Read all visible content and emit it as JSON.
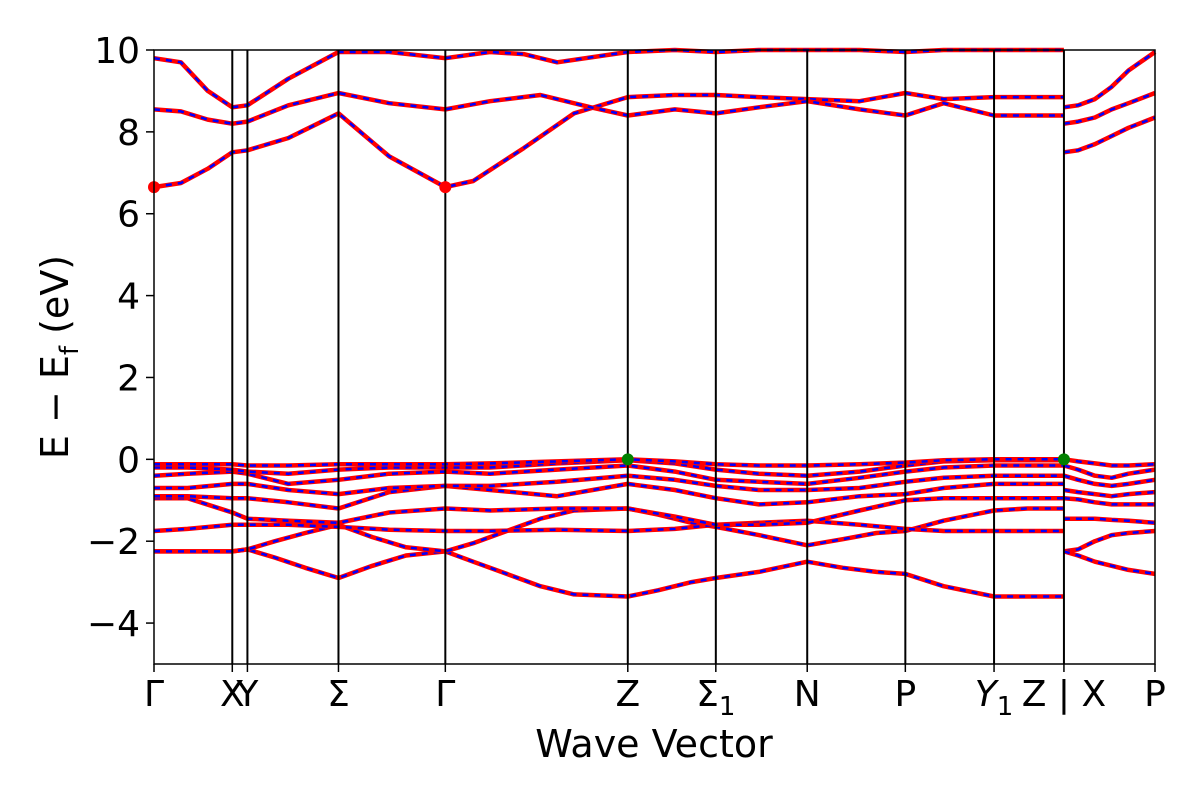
{
  "chart_data": {
    "type": "line",
    "title": "",
    "xlabel": "Wave Vector",
    "ylabel": "E − E",
    "ylabel_subscript": "f",
    "ylabel_unit": " (eV)",
    "ylim": [
      -5,
      10
    ],
    "yticks": [
      10,
      8,
      6,
      4,
      2,
      0,
      -2,
      -4
    ],
    "ytick_labels": [
      "10",
      "8",
      "6",
      "4",
      "2",
      "0",
      "−2",
      "−4"
    ],
    "grid": false,
    "legend": "none",
    "kpoints": [
      {
        "label": "Γ",
        "x": 0.0
      },
      {
        "label": "X",
        "x": 0.233
      },
      {
        "label": "Y",
        "x": 0.278
      },
      {
        "label": "Σ",
        "x": 0.549
      },
      {
        "label": "Γ",
        "x": 0.867
      },
      {
        "label": "Z",
        "x": 1.41
      },
      {
        "label": "Σ",
        "sub": "1",
        "x": 1.672
      },
      {
        "label": "N",
        "x": 1.944
      },
      {
        "label": "P",
        "x": 2.236
      },
      {
        "label": "Y",
        "sub": "1",
        "italic": true,
        "x": 2.5
      },
      {
        "label": "Z | X",
        "x": 2.708
      },
      {
        "label": "P",
        "x": 2.979
      }
    ],
    "xlim": [
      0.0,
      2.979
    ],
    "band_colors": {
      "spin_up": "#ff0000",
      "spin_down": "#0000ff"
    },
    "extrema_colors": {
      "cbm": "#ff0000",
      "vbm": "#008000"
    },
    "cbm_points": [
      {
        "x": 0.0,
        "y": 6.65
      },
      {
        "x": 0.867,
        "y": 6.65
      }
    ],
    "vbm_points": [
      {
        "x": 1.41,
        "y": 0.0
      },
      {
        "x": 2.708,
        "y": 0.0
      }
    ],
    "series": [
      {
        "x": [
          0.0,
          0.08,
          0.16,
          0.233,
          0.278,
          0.36,
          0.45,
          0.549,
          0.65,
          0.75,
          0.867,
          0.95,
          1.05,
          1.15,
          1.25,
          1.41,
          1.5,
          1.6,
          1.672,
          1.8,
          1.944,
          2.05,
          2.15,
          2.236,
          2.35,
          2.5,
          2.6,
          2.708
        ],
        "values": [
          -2.25,
          -2.25,
          -2.25,
          -2.25,
          -2.2,
          -2.4,
          -2.65,
          -2.9,
          -2.6,
          -2.35,
          -2.25,
          -2.5,
          -2.8,
          -3.1,
          -3.3,
          -3.35,
          -3.2,
          -3.0,
          -2.9,
          -2.75,
          -2.5,
          -2.65,
          -2.75,
          -2.8,
          -3.1,
          -3.35,
          -3.35,
          -3.35
        ]
      },
      {
        "x": [
          0.0,
          0.08,
          0.16,
          0.233,
          0.278,
          0.36,
          0.45,
          0.549,
          0.65,
          0.75,
          0.867,
          0.95,
          1.05,
          1.15,
          1.25,
          1.41,
          1.5,
          1.6,
          1.672,
          1.8,
          1.944,
          2.05,
          2.15,
          2.236,
          2.35,
          2.5,
          2.6,
          2.708
        ],
        "values": [
          -2.25,
          -2.25,
          -2.25,
          -2.25,
          -2.2,
          -2.0,
          -1.8,
          -1.6,
          -1.9,
          -2.15,
          -2.25,
          -2.05,
          -1.75,
          -1.45,
          -1.25,
          -1.2,
          -1.35,
          -1.55,
          -1.65,
          -1.85,
          -2.1,
          -1.95,
          -1.8,
          -1.75,
          -1.5,
          -1.25,
          -1.2,
          -1.2
        ]
      },
      {
        "x": [
          0.0,
          0.1,
          0.233,
          0.278,
          0.4,
          0.549,
          0.7,
          0.867,
          1.0,
          1.2,
          1.41,
          1.55,
          1.672,
          1.8,
          1.944,
          2.1,
          2.236,
          2.35,
          2.5,
          2.708
        ],
        "values": [
          -1.75,
          -1.7,
          -1.6,
          -1.6,
          -1.6,
          -1.65,
          -1.72,
          -1.75,
          -1.75,
          -1.72,
          -1.75,
          -1.7,
          -1.6,
          -1.55,
          -1.5,
          -1.6,
          -1.7,
          -1.75,
          -1.75,
          -1.75
        ]
      },
      {
        "x": [
          0.0,
          0.1,
          0.233,
          0.278,
          0.4,
          0.549,
          0.7,
          0.867,
          1.0,
          1.2,
          1.41,
          1.55,
          1.672,
          1.8,
          1.944,
          2.1,
          2.236,
          2.35,
          2.5,
          2.708
        ],
        "values": [
          -0.95,
          -0.95,
          -1.3,
          -1.45,
          -1.5,
          -1.55,
          -1.3,
          -1.2,
          -1.25,
          -1.2,
          -1.2,
          -1.4,
          -1.6,
          -1.6,
          -1.55,
          -1.25,
          -1.0,
          -0.95,
          -0.95,
          -0.95
        ]
      },
      {
        "x": [
          0.0,
          0.1,
          0.233,
          0.278,
          0.4,
          0.549,
          0.7,
          0.867,
          1.0,
          1.2,
          1.41,
          1.55,
          1.672,
          1.8,
          1.944,
          2.1,
          2.236,
          2.35,
          2.5,
          2.708
        ],
        "values": [
          -0.9,
          -0.9,
          -0.95,
          -0.95,
          -1.05,
          -1.2,
          -0.8,
          -0.65,
          -0.75,
          -0.9,
          -0.6,
          -0.75,
          -0.95,
          -1.1,
          -1.05,
          -0.9,
          -0.85,
          -0.7,
          -0.6,
          -0.6
        ]
      },
      {
        "x": [
          0.0,
          0.1,
          0.233,
          0.278,
          0.4,
          0.549,
          0.7,
          0.867,
          1.0,
          1.2,
          1.41,
          1.55,
          1.672,
          1.8,
          1.944,
          2.1,
          2.236,
          2.35,
          2.5,
          2.708
        ],
        "values": [
          -0.7,
          -0.7,
          -0.6,
          -0.6,
          -0.75,
          -0.85,
          -0.7,
          -0.65,
          -0.65,
          -0.55,
          -0.4,
          -0.5,
          -0.65,
          -0.75,
          -0.75,
          -0.7,
          -0.55,
          -0.45,
          -0.4,
          -0.4
        ]
      },
      {
        "x": [
          0.0,
          0.1,
          0.233,
          0.278,
          0.4,
          0.549,
          0.7,
          0.867,
          1.0,
          1.2,
          1.41,
          1.55,
          1.672,
          1.8,
          1.944,
          2.1,
          2.236,
          2.35,
          2.5,
          2.708
        ],
        "values": [
          -0.4,
          -0.35,
          -0.3,
          -0.35,
          -0.6,
          -0.5,
          -0.35,
          -0.3,
          -0.35,
          -0.25,
          -0.15,
          -0.3,
          -0.5,
          -0.55,
          -0.6,
          -0.45,
          -0.3,
          -0.2,
          -0.15,
          -0.15
        ]
      },
      {
        "x": [
          0.0,
          0.1,
          0.233,
          0.278,
          0.4,
          0.549,
          0.7,
          0.867,
          1.0,
          1.2,
          1.41,
          1.55,
          1.672,
          1.8,
          1.944,
          2.1,
          2.236,
          2.35,
          2.5,
          2.708
        ],
        "values": [
          -0.2,
          -0.2,
          -0.25,
          -0.3,
          -0.35,
          -0.25,
          -0.2,
          -0.2,
          -0.2,
          -0.1,
          -0.02,
          -0.1,
          -0.25,
          -0.35,
          -0.4,
          -0.3,
          -0.15,
          -0.05,
          -0.02,
          -0.02
        ]
      },
      {
        "x": [
          0.0,
          0.1,
          0.233,
          0.278,
          0.4,
          0.549,
          0.7,
          0.867,
          1.0,
          1.2,
          1.41,
          1.55,
          1.672,
          1.8,
          1.944,
          2.1,
          2.236,
          2.35,
          2.5,
          2.708
        ],
        "values": [
          -0.12,
          -0.12,
          -0.12,
          -0.15,
          -0.15,
          -0.12,
          -0.12,
          -0.12,
          -0.1,
          -0.05,
          0.0,
          -0.05,
          -0.12,
          -0.15,
          -0.15,
          -0.12,
          -0.08,
          -0.02,
          0.0,
          0.0
        ]
      },
      {
        "x": [
          0.0,
          0.08,
          0.16,
          0.233,
          0.278,
          0.4,
          0.549,
          0.7,
          0.867,
          0.95,
          1.1,
          1.25,
          1.41,
          1.55,
          1.672,
          1.8,
          1.944,
          2.1,
          2.236,
          2.35,
          2.5,
          2.708
        ],
        "values": [
          6.65,
          6.75,
          7.1,
          7.5,
          7.55,
          7.85,
          8.45,
          7.4,
          6.65,
          6.8,
          7.6,
          8.45,
          8.85,
          8.9,
          8.9,
          8.85,
          8.8,
          8.75,
          8.95,
          8.8,
          8.85,
          8.85
        ]
      },
      {
        "x": [
          0.0,
          0.08,
          0.16,
          0.233,
          0.278,
          0.4,
          0.549,
          0.7,
          0.867,
          1.0,
          1.15,
          1.3,
          1.41,
          1.55,
          1.672,
          1.8,
          1.944,
          2.1,
          2.236,
          2.35,
          2.5,
          2.6,
          2.708
        ],
        "values": [
          8.55,
          8.5,
          8.3,
          8.2,
          8.25,
          8.65,
          8.95,
          8.7,
          8.55,
          8.75,
          8.9,
          8.6,
          8.4,
          8.55,
          8.45,
          8.6,
          8.75,
          8.55,
          8.4,
          8.7,
          8.4,
          8.4,
          8.4
        ]
      },
      {
        "x": [
          0.0,
          0.08,
          0.16,
          0.233,
          0.278,
          0.4,
          0.549,
          0.7,
          0.867,
          1.0,
          1.1,
          1.2,
          1.41,
          1.55,
          1.672,
          1.8,
          1.944,
          2.1,
          2.236,
          2.35,
          2.5,
          2.708
        ],
        "values": [
          9.8,
          9.7,
          9.0,
          8.6,
          8.65,
          9.3,
          9.95,
          9.95,
          9.8,
          9.95,
          9.9,
          9.7,
          9.95,
          10.0,
          9.95,
          10.0,
          10.0,
          10.0,
          9.95,
          10.0,
          10.0,
          10.0
        ]
      },
      {
        "x": [
          2.708,
          2.75,
          2.8,
          2.85,
          2.9,
          2.979
        ],
        "values": [
          7.5,
          7.55,
          7.7,
          7.9,
          8.1,
          8.35
        ]
      },
      {
        "x": [
          2.708,
          2.75,
          2.8,
          2.85,
          2.9,
          2.979
        ],
        "values": [
          8.2,
          8.25,
          8.35,
          8.55,
          8.7,
          8.95
        ]
      },
      {
        "x": [
          2.708,
          2.75,
          2.8,
          2.85,
          2.9,
          2.979
        ],
        "values": [
          8.6,
          8.65,
          8.8,
          9.1,
          9.5,
          9.95
        ]
      },
      {
        "x": [
          2.708,
          2.75,
          2.8,
          2.85,
          2.9,
          2.979
        ],
        "values": [
          -2.25,
          -2.2,
          -2.0,
          -1.85,
          -1.8,
          -1.75
        ]
      },
      {
        "x": [
          2.708,
          2.75,
          2.8,
          2.85,
          2.9,
          2.979
        ],
        "values": [
          -2.25,
          -2.35,
          -2.5,
          -2.6,
          -2.7,
          -2.8
        ]
      },
      {
        "x": [
          2.708,
          2.75,
          2.8,
          2.85,
          2.9,
          2.979
        ],
        "values": [
          -1.45,
          -1.45,
          -1.45,
          -1.48,
          -1.5,
          -1.55
        ]
      },
      {
        "x": [
          2.708,
          2.75,
          2.8,
          2.85,
          2.9,
          2.979
        ],
        "values": [
          -0.95,
          -0.98,
          -1.05,
          -1.1,
          -1.1,
          -1.1
        ]
      },
      {
        "x": [
          2.708,
          2.75,
          2.8,
          2.85,
          2.9,
          2.979
        ],
        "values": [
          -0.75,
          -0.8,
          -0.85,
          -0.9,
          -0.85,
          -0.8
        ]
      },
      {
        "x": [
          2.708,
          2.75,
          2.8,
          2.85,
          2.9,
          2.979
        ],
        "values": [
          -0.4,
          -0.5,
          -0.6,
          -0.65,
          -0.6,
          -0.5
        ]
      },
      {
        "x": [
          2.708,
          2.75,
          2.8,
          2.85,
          2.9,
          2.979
        ],
        "values": [
          -0.15,
          -0.25,
          -0.4,
          -0.45,
          -0.35,
          -0.25
        ]
      },
      {
        "x": [
          2.708,
          2.75,
          2.8,
          2.85,
          2.9,
          2.979
        ],
        "values": [
          0.0,
          -0.05,
          -0.1,
          -0.15,
          -0.15,
          -0.12
        ]
      }
    ]
  }
}
